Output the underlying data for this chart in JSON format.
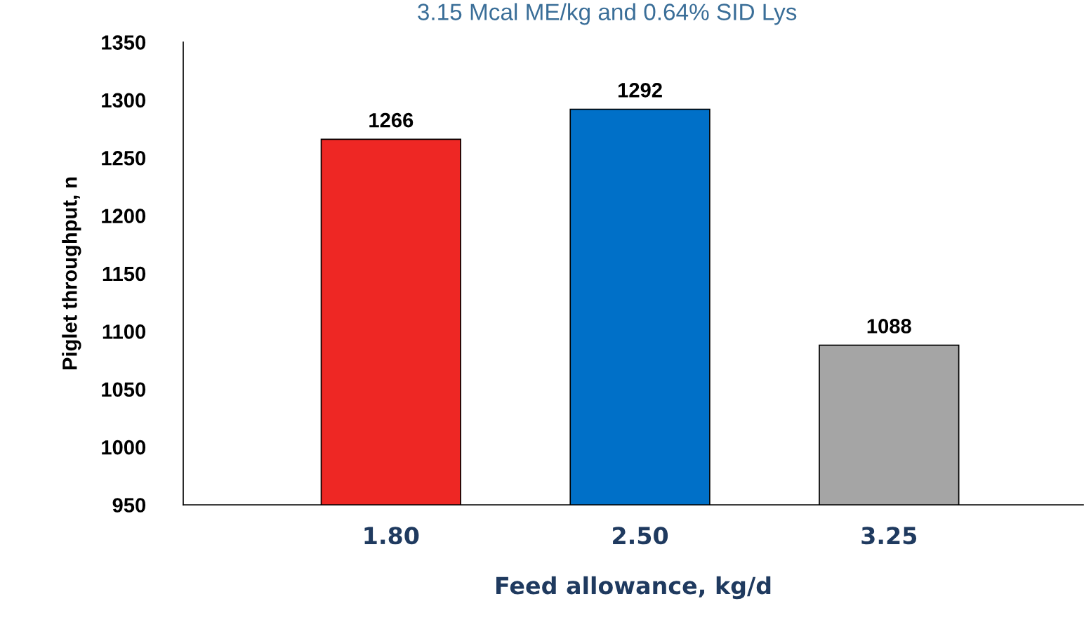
{
  "chart_data": {
    "type": "bar",
    "title": "3.15 Mcal ME/kg and 0.64% SID Lys",
    "xlabel": "Feed allowance, kg/d",
    "ylabel": "Piglet throughput, n",
    "categories": [
      "1.80",
      "2.50",
      "3.25"
    ],
    "values": [
      1266,
      1292,
      1088
    ],
    "colors": [
      "#ee2724",
      "#0070c8",
      "#a5a5a5"
    ],
    "ylim": [
      950,
      1350
    ],
    "yticks": [
      950,
      1000,
      1050,
      1100,
      1150,
      1200,
      1250,
      1300,
      1350
    ],
    "grid": false,
    "data_labels": true,
    "legend": false
  }
}
